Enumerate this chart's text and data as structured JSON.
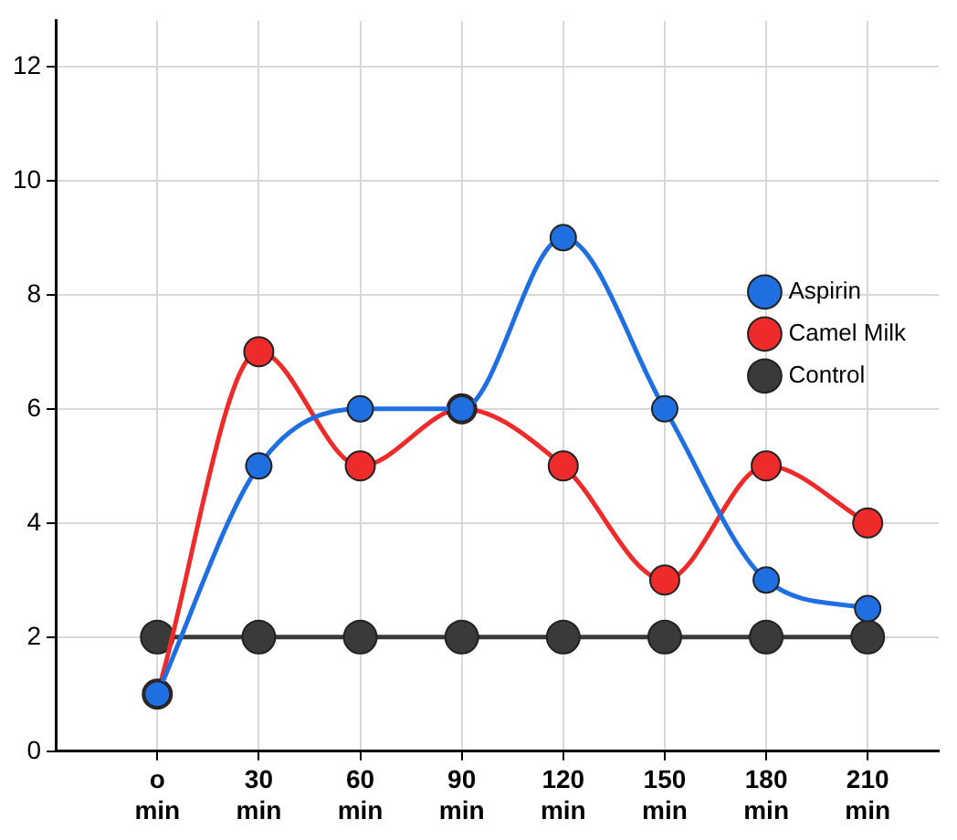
{
  "chart_data": {
    "type": "line",
    "categories": [
      "o min",
      "30 min",
      "60 min",
      "90 min",
      "120 min",
      "150 min",
      "180 min",
      "210 min"
    ],
    "series": [
      {
        "name": "Control",
        "color": "#3a3a3a",
        "values": [
          2,
          2,
          2,
          2,
          2,
          2,
          2,
          2
        ]
      },
      {
        "name": "Camel Milk",
        "color": "#ee2b2b",
        "values": [
          1,
          7,
          5,
          6,
          5,
          3,
          5,
          4
        ]
      },
      {
        "name": "Aspirin",
        "color": "#1f6fe0",
        "values": [
          1,
          5,
          6,
          6,
          9,
          6,
          3,
          2.5
        ]
      }
    ],
    "ylim": [
      0,
      12.8
    ],
    "yticks": [
      0,
      2,
      4,
      6,
      8,
      10,
      12
    ],
    "grid": true,
    "legend": "right",
    "marker": "circle",
    "line_style": "solid"
  }
}
